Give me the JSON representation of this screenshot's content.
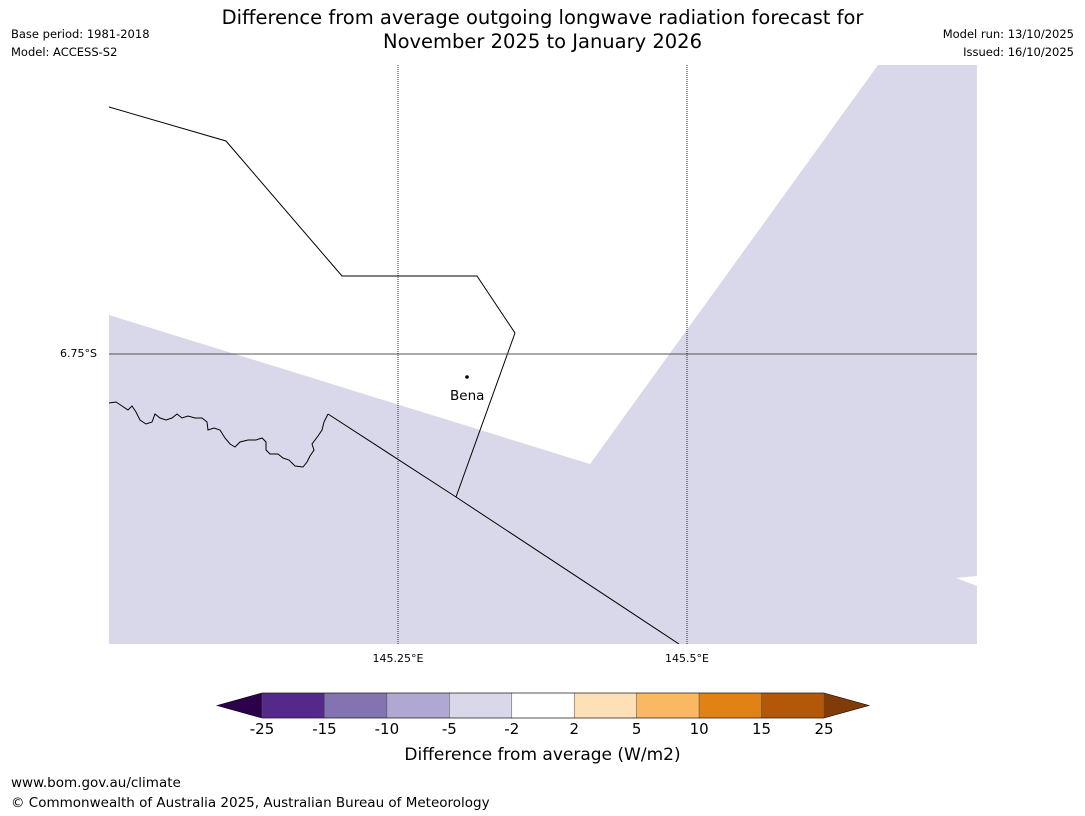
{
  "header": {
    "title_line1": "Difference from average outgoing longwave radiation forecast for",
    "title_line2": "November 2025 to January 2026",
    "base_period": "Base period: 1981-2018",
    "model": "Model: ACCESS-S2",
    "model_run": "Model run: 13/10/2025",
    "issued": "Issued: 16/10/2025"
  },
  "map": {
    "latitude_labels": [
      "6.75°S"
    ],
    "longitude_labels": [
      "145.25°E",
      "145.5°E"
    ],
    "place_label": "Bena",
    "fill_category_color": "#d8d8ea",
    "background_color": "#ffffff",
    "gridline_color": "#555555"
  },
  "colorbar": {
    "title": "Difference from average (W/m2)",
    "tick_labels": [
      "-25",
      "-15",
      "-10",
      "-5",
      "-2",
      "2",
      "5",
      "10",
      "15",
      "25"
    ],
    "bin_colors": [
      "#552989",
      "#8373b0",
      "#b0a8d2",
      "#d8d8ea",
      "#ffffff",
      "#fee0b6",
      "#fbb862",
      "#e08214",
      "#b35806"
    ],
    "under_color": "#2d004b",
    "over_color": "#7f3b08"
  },
  "footer": {
    "url": "www.bom.gov.au/climate",
    "copyright": "© Commonwealth of Australia 2025, Australian Bureau of Meteorology"
  }
}
